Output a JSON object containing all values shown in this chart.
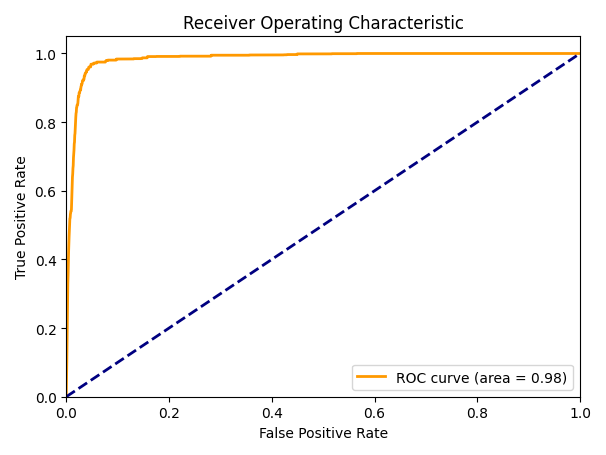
{
  "title": "Receiver Operating Characteristic",
  "xlabel": "False Positive Rate",
  "ylabel": "True Positive Rate",
  "legend_label": "ROC curve (area = 0.98)",
  "roc_color": "#ff9900",
  "roc_linewidth": 2,
  "diag_color": "navy",
  "diag_linewidth": 2,
  "diag_linestyle": "--",
  "xlim": [
    0.0,
    1.0
  ],
  "ylim": [
    0.0,
    1.05
  ],
  "xticks": [
    0.0,
    0.2,
    0.4,
    0.6,
    0.8,
    1.0
  ],
  "yticks": [
    0.0,
    0.2,
    0.4,
    0.6,
    0.8,
    1.0
  ],
  "figsize": [
    6.06,
    4.56
  ],
  "dpi": 100,
  "legend_loc": "lower right",
  "fpr_points": [
    0.0,
    0.001,
    0.002,
    0.003,
    0.005,
    0.007,
    0.009,
    0.01,
    0.011,
    0.012,
    0.015,
    0.018,
    0.02,
    0.025,
    0.03,
    0.035,
    0.04,
    0.05,
    0.06,
    0.08,
    0.1,
    0.15,
    0.2,
    0.3,
    0.4,
    0.5,
    0.6,
    0.7,
    0.8,
    0.9,
    1.0
  ],
  "tpr_points": [
    0.0,
    0.1,
    0.22,
    0.33,
    0.45,
    0.52,
    0.54,
    0.54,
    0.6,
    0.64,
    0.72,
    0.8,
    0.84,
    0.88,
    0.91,
    0.93,
    0.95,
    0.965,
    0.97,
    0.975,
    0.978,
    0.982,
    0.985,
    0.988,
    0.99,
    0.992,
    0.994,
    0.995,
    0.997,
    0.999,
    1.0
  ]
}
